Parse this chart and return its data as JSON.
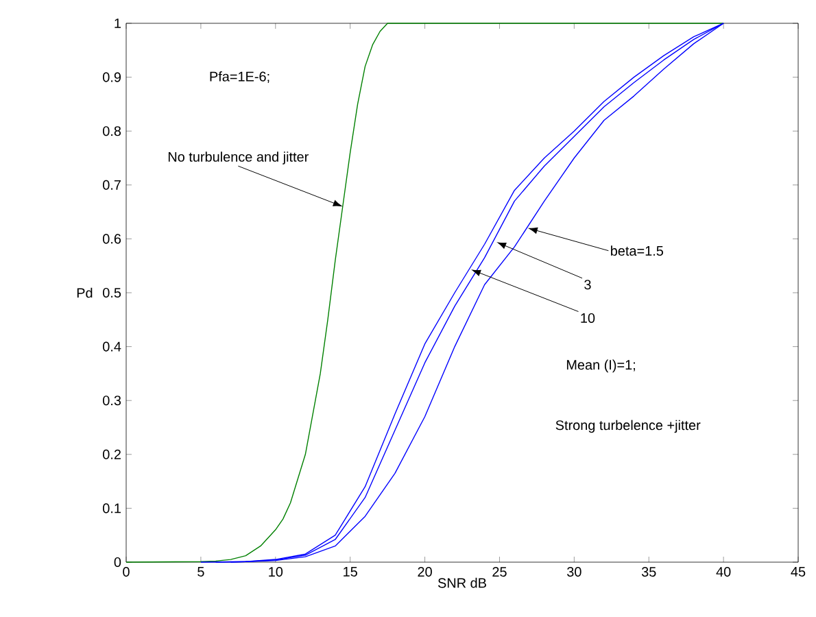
{
  "chart_data": {
    "type": "line",
    "xlabel": "SNR dB",
    "ylabel": "Pd",
    "xlim": [
      0,
      45
    ],
    "ylim": [
      0,
      1
    ],
    "xticks": [
      0,
      5,
      10,
      15,
      20,
      25,
      30,
      35,
      40,
      45
    ],
    "yticks": [
      0,
      {
        "value": 0.1,
        "label": "0.1"
      },
      {
        "value": 0.2,
        "label": "0.2"
      },
      {
        "value": 0.3,
        "label": "0.3"
      },
      {
        "value": 0.4,
        "label": "0.4"
      },
      {
        "value": 0.5,
        "label": "0.5"
      },
      {
        "value": 0.6,
        "label": "0.6"
      },
      {
        "value": 0.7,
        "label": "0.7"
      },
      {
        "value": 0.8,
        "label": "0.8"
      },
      {
        "value": 0.9,
        "label": "0.9"
      },
      1
    ],
    "grid": false,
    "marker": "none",
    "line_style": "solid",
    "series": [
      {
        "color": "#008000",
        "x": [
          0,
          5,
          6,
          7,
          8,
          9,
          10,
          10.5,
          11,
          12,
          13,
          13.5,
          14,
          14.5,
          15,
          15.5,
          16,
          16.5,
          17,
          17.5,
          20,
          25,
          30,
          35,
          40
        ],
        "values": [
          0,
          0.001,
          0.002,
          0.005,
          0.012,
          0.03,
          0.06,
          0.08,
          0.11,
          0.2,
          0.35,
          0.45,
          0.56,
          0.66,
          0.76,
          0.85,
          0.92,
          0.96,
          0.985,
          1,
          1,
          1,
          1,
          1,
          1
        ]
      },
      {
        "color": "#0000ff",
        "x": [
          5,
          8,
          10,
          12,
          14,
          16,
          18,
          20,
          22,
          24,
          26,
          28,
          30,
          32,
          34,
          36,
          38,
          40
        ],
        "values": [
          0,
          0.001,
          0.005,
          0.015,
          0.05,
          0.14,
          0.275,
          0.405,
          0.5,
          0.59,
          0.69,
          0.75,
          0.8,
          0.855,
          0.9,
          0.94,
          0.975,
          1
        ]
      },
      {
        "color": "#0000ff",
        "x": [
          6,
          8,
          10,
          12,
          14,
          16,
          18,
          20,
          22,
          24,
          26,
          28,
          30,
          32,
          34,
          36,
          38,
          40
        ],
        "values": [
          0,
          0.001,
          0.004,
          0.013,
          0.042,
          0.12,
          0.245,
          0.37,
          0.475,
          0.565,
          0.67,
          0.735,
          0.79,
          0.845,
          0.89,
          0.932,
          0.97,
          1
        ]
      },
      {
        "color": "#0000ff",
        "x": [
          7,
          8,
          10,
          12,
          14,
          16,
          18,
          20,
          22,
          24,
          26,
          28,
          30,
          32,
          34,
          36,
          38,
          40
        ],
        "values": [
          0,
          0.001,
          0.003,
          0.01,
          0.03,
          0.085,
          0.165,
          0.27,
          0.4,
          0.515,
          0.585,
          0.67,
          0.75,
          0.82,
          0.865,
          0.915,
          0.962,
          1
        ]
      }
    ],
    "annotations": [
      "Pfa=1E-6;",
      {
        "text": "No turbulence and jitter",
        "x": 14.5,
        "y": 0.66
      },
      {
        "text": "beta=1.5",
        "x": 26.9,
        "y": 0.62
      },
      {
        "text": "3",
        "x": 24.8,
        "y": 0.594
      },
      {
        "text": "10",
        "x": 23.1,
        "y": 0.543
      },
      "Mean (I)=1;",
      "Strong turbelence +jitter"
    ]
  }
}
